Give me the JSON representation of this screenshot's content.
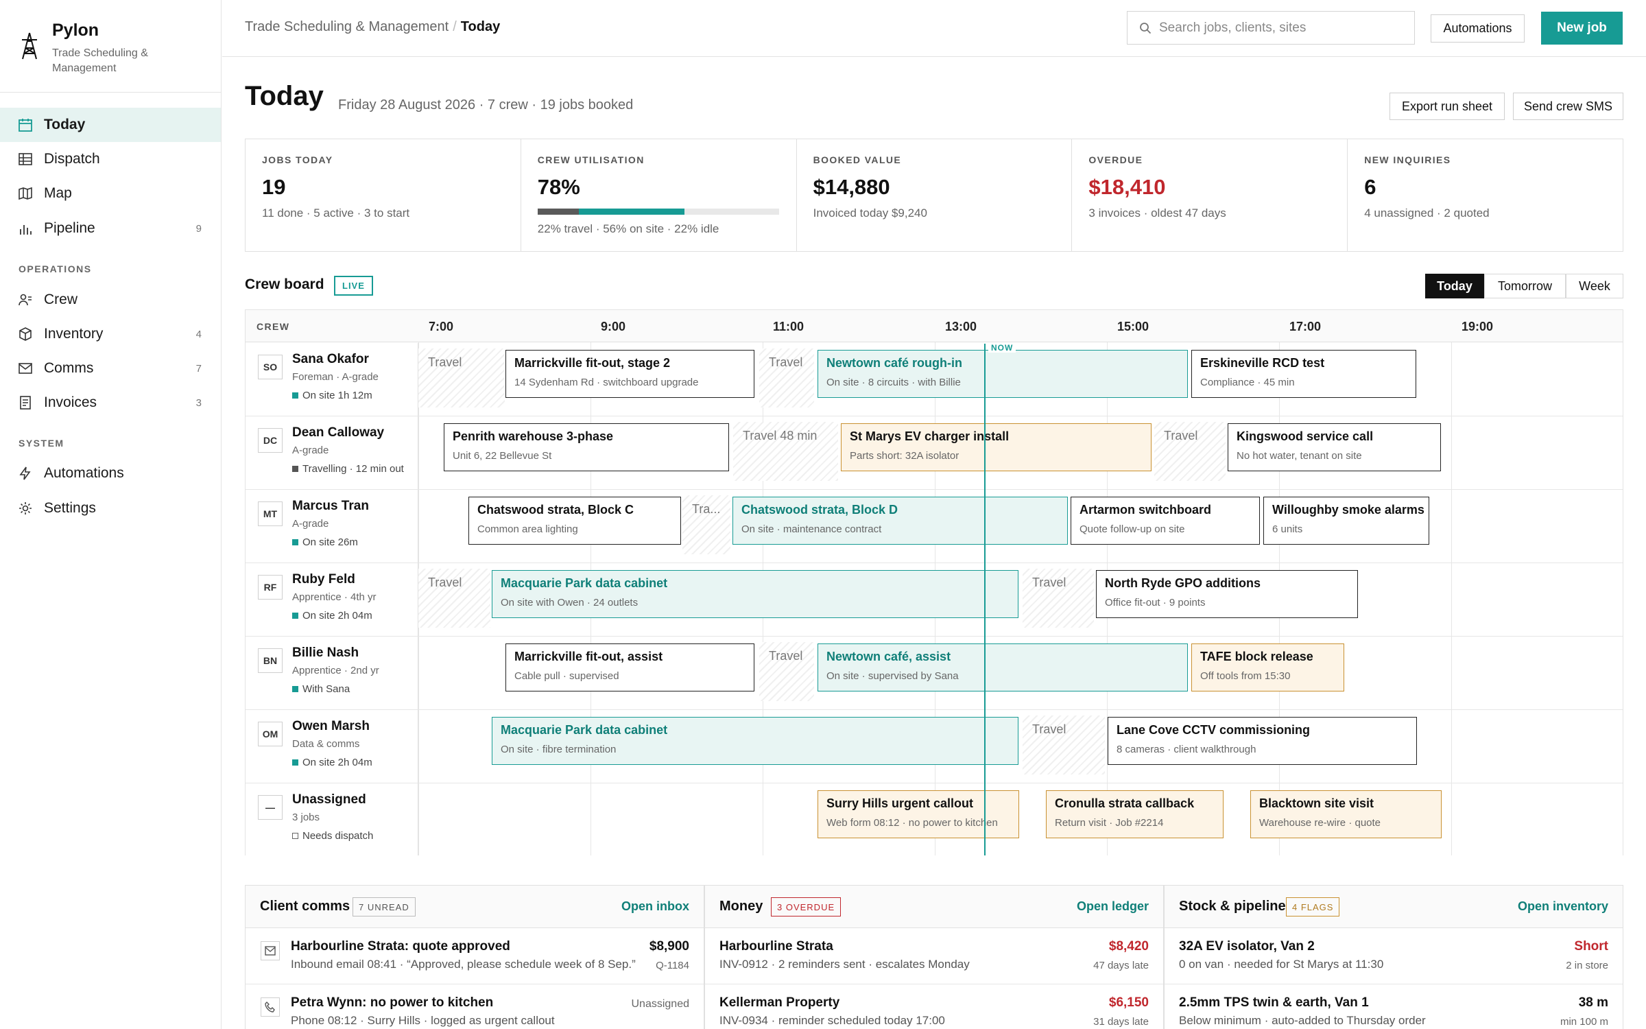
{
  "brand": {
    "name": "Pylon",
    "tagline": "Trade Scheduling & Management"
  },
  "nav": {
    "main": [
      {
        "label": "Today",
        "count": ""
      },
      {
        "label": "Dispatch",
        "count": ""
      },
      {
        "label": "Map",
        "count": ""
      },
      {
        "label": "Pipeline",
        "count": "9"
      }
    ],
    "operations_label": "OPERATIONS",
    "operations": [
      {
        "label": "Crew",
        "count": ""
      },
      {
        "label": "Inventory",
        "count": "4"
      },
      {
        "label": "Comms",
        "count": "7"
      },
      {
        "label": "Invoices",
        "count": "3"
      }
    ],
    "system_label": "SYSTEM",
    "system": [
      {
        "label": "Automations"
      },
      {
        "label": "Settings"
      }
    ]
  },
  "topbar": {
    "crumb_root": "Trade Scheduling & Management",
    "crumb_current": "Today",
    "search_placeholder": "Search jobs, clients, sites",
    "automations": "Automations",
    "new_job": "New job"
  },
  "page": {
    "title": "Today",
    "subtitle": "Friday 28 August 2026 · 7 crew · 19 jobs booked",
    "export": "Export run sheet",
    "sms": "Send crew SMS"
  },
  "kpis": [
    {
      "label": "JOBS TODAY",
      "value": "19",
      "sub": "11 done · 5 active · 3 to start"
    },
    {
      "label": "CREW UTILISATION",
      "value": "78%",
      "sub": "22% travel · 56% on site · 22% idle",
      "travel_pct": 22,
      "onsite_pct": 56
    },
    {
      "label": "BOOKED VALUE",
      "value": "$14,880",
      "sub": "Invoiced today $9,240"
    },
    {
      "label": "OVERDUE",
      "value": "$18,410",
      "sub": "3 invoices · oldest 47 days"
    },
    {
      "label": "NEW INQUIRIES",
      "value": "6",
      "sub": "4 unassigned · 2 quoted"
    }
  ],
  "board": {
    "title": "Crew board",
    "live": "LIVE",
    "ranges": [
      "Today",
      "Tomorrow",
      "Week"
    ],
    "crew_header": "CREW",
    "hours": [
      "7:00",
      "9:00",
      "11:00",
      "13:00",
      "15:00",
      "17:00",
      "19:00"
    ],
    "now_label": "NOW",
    "crew": [
      {
        "ini": "SO",
        "name": "Sana Okafor",
        "role": "Foreman · A-grade",
        "status": "On site 1h 12m",
        "status_color": "#179b94"
      },
      {
        "ini": "DC",
        "name": "Dean Calloway",
        "role": "A-grade",
        "status": "Travelling · 12 min out",
        "status_color": "#555555"
      },
      {
        "ini": "MT",
        "name": "Marcus Tran",
        "role": "A-grade",
        "status": "On site 26m",
        "status_color": "#179b94"
      },
      {
        "ini": "RF",
        "name": "Ruby Feld",
        "role": "Apprentice · 4th yr",
        "status": "On site 2h 04m",
        "status_color": "#179b94"
      },
      {
        "ini": "BN",
        "name": "Billie Nash",
        "role": "Apprentice · 2nd yr",
        "status": "With Sana",
        "status_color": "#179b94"
      },
      {
        "ini": "OM",
        "name": "Owen Marsh",
        "role": "Data & comms",
        "status": "On site 2h 04m",
        "status_color": "#179b94"
      },
      {
        "ini": "—",
        "name": "Unassigned",
        "role": "3 jobs",
        "status": "Needs dispatch",
        "status_color": "hollow"
      }
    ],
    "rows": [
      [
        {
          "k": "travel",
          "t": "Travel"
        },
        {
          "k": "job",
          "t": "Marrickville fit-out, stage 2",
          "d": "14 Sydenham Rd · switchboard upgrade"
        },
        {
          "k": "travel",
          "t": "Travel"
        },
        {
          "k": "active",
          "t": "Newtown café rough-in",
          "d": "On site · 8 circuits · with Billie"
        },
        {
          "k": "job",
          "t": "Erskineville RCD test",
          "d": "Compliance · 45 min"
        }
      ],
      [
        {
          "k": "job",
          "t": "Penrith warehouse 3-phase",
          "d": "Unit 6, 22 Bellevue St"
        },
        {
          "k": "travel",
          "t": "Travel 48 min"
        },
        {
          "k": "warn",
          "t": "St Marys EV charger install",
          "d": "Parts short: 32A isolator"
        },
        {
          "k": "travel",
          "t": "Travel"
        },
        {
          "k": "job",
          "t": "Kingswood service call",
          "d": "No hot water, tenant on site"
        }
      ],
      [
        {
          "k": "job",
          "t": "Chatswood strata, Block C",
          "d": "Common area lighting"
        },
        {
          "k": "travel",
          "t": "Tra..."
        },
        {
          "k": "active",
          "t": "Chatswood strata, Block D",
          "d": "On site · maintenance contract"
        },
        {
          "k": "job",
          "t": "Artarmon switchboard",
          "d": "Quote follow-up on site"
        },
        {
          "k": "job",
          "t": "Willoughby smoke alarms",
          "d": "6 units"
        }
      ],
      [
        {
          "k": "travel",
          "t": "Travel"
        },
        {
          "k": "active",
          "t": "Macquarie Park data cabinet",
          "d": "On site with Owen · 24 outlets"
        },
        {
          "k": "travel",
          "t": "Travel"
        },
        {
          "k": "job",
          "t": "North Ryde GPO additions",
          "d": "Office fit-out · 9 points"
        }
      ],
      [
        {
          "k": "job",
          "t": "Marrickville fit-out, assist",
          "d": "Cable pull · supervised"
        },
        {
          "k": "travel",
          "t": "Travel"
        },
        {
          "k": "active",
          "t": "Newtown café, assist",
          "d": "On site · supervised by Sana"
        },
        {
          "k": "warn",
          "t": "TAFE block release",
          "d": "Off tools from 15:30"
        }
      ],
      [
        {
          "k": "active",
          "t": "Macquarie Park data cabinet",
          "d": "On site · fibre termination"
        },
        {
          "k": "travel",
          "t": "Travel"
        },
        {
          "k": "job",
          "t": "Lane Cove CCTV commissioning",
          "d": "8 cameras · client walkthrough"
        }
      ],
      [
        {
          "k": "warn",
          "t": "Surry Hills urgent callout",
          "d": "Web form 08:12 · no power to kitchen"
        },
        {
          "k": "warn",
          "t": "Cronulla strata callback",
          "d": "Return visit · Job #2214"
        },
        {
          "k": "warn",
          "t": "Blacktown site visit",
          "d": "Warehouse re-wire · quote"
        }
      ]
    ]
  },
  "comms": {
    "title": "Client comms",
    "badge": "7 UNREAD",
    "link": "Open inbox",
    "items": [
      {
        "title": "Harbourline Strata: quote approved",
        "sub": "Inbound email 08:41 · “Approved, please schedule week of 8 Sep.”",
        "right": "$8,900",
        "right2": "Q-1184",
        "icon": "mail-icon"
      },
      {
        "title": "Petra Wynn: no power to kitchen",
        "sub": "Phone 08:12 · Surry Hills · logged as urgent callout",
        "right": "",
        "right2": "Unassigned",
        "icon": "phone-icon"
      }
    ]
  },
  "money": {
    "title": "Money",
    "badge": "3 OVERDUE",
    "link": "Open ledger",
    "items": [
      {
        "title": "Harbourline Strata",
        "sub": "INV-0912 · 2 reminders sent · escalates Monday",
        "right": "$8,420",
        "right2": "47 days late"
      },
      {
        "title": "Kellerman Property",
        "sub": "INV-0934 · reminder scheduled today 17:00",
        "right": "$6,150",
        "right2": "31 days late"
      }
    ]
  },
  "stock": {
    "title": "Stock & pipeline",
    "badge": "4 FLAGS",
    "link": "Open inventory",
    "items": [
      {
        "title": "32A EV isolator, Van 2",
        "sub": "0 on van · needed for St Marys at 11:30",
        "right": "Short",
        "right2": "2 in store"
      },
      {
        "title": "2.5mm TPS twin & earth, Van 1",
        "sub": "Below minimum · auto-added to Thursday order",
        "right": "38 m",
        "right2": "min 100 m"
      }
    ]
  },
  "colors": {
    "accent": "#179b94",
    "danger": "#c0272d",
    "warning": "#c99131"
  }
}
